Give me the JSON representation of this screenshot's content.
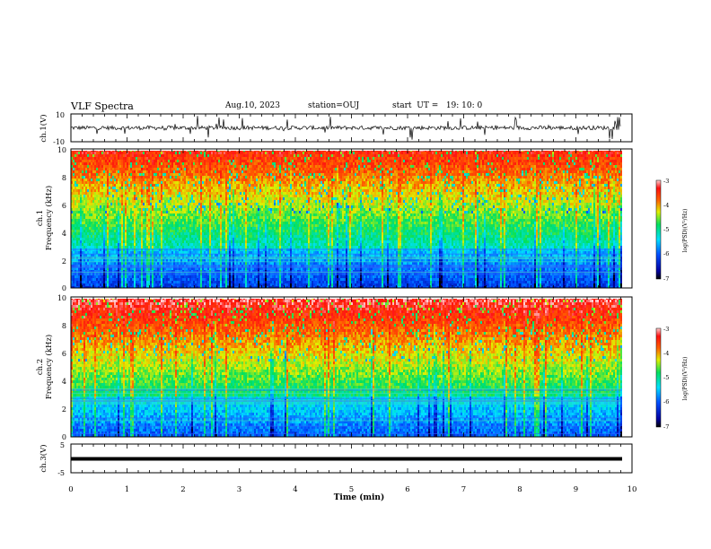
{
  "header": {
    "title": "VLF Spectra",
    "date": "Aug.10, 2023",
    "station": "station=OUJ",
    "start_ut": "start  UT =   19: 10: 0"
  },
  "chart_data": [
    {
      "type": "line",
      "panel": "ch1-waveform",
      "ylabel": "ch.1(V)",
      "ylim": [
        -10,
        10
      ],
      "yticks": [
        "10",
        "-10"
      ],
      "xlim": [
        0,
        10
      ],
      "series": [
        {
          "values_description_only": false,
          "baseline": 0,
          "amplitude_typical": 2
        }
      ]
    },
    {
      "type": "heatmap",
      "panel": "ch1-spectrogram",
      "ylabel_line1": "ch.1",
      "ylabel_line2": "Frequency  (kHz)",
      "ylim": [
        0,
        10
      ],
      "yticks": [
        "0",
        "2",
        "4",
        "6",
        "8",
        "10"
      ],
      "xlim": [
        0,
        9.8
      ],
      "colorbar": {
        "label": "log(PSD)(V²/Hz)",
        "range": [
          -7,
          -3
        ],
        "ticks": [
          "-3",
          "-4",
          "-5",
          "-6",
          "-7"
        ]
      }
    },
    {
      "type": "heatmap",
      "panel": "ch2-spectrogram",
      "ylabel_line1": "ch.2",
      "ylabel_line2": "Frequency  (kHz)",
      "ylim": [
        0,
        10
      ],
      "yticks": [
        "0",
        "2",
        "4",
        "6",
        "8",
        "10"
      ],
      "xlim": [
        0,
        9.8
      ],
      "colorbar": {
        "label": "log(PSD)(V²/Hz)",
        "range": [
          -7,
          -3
        ],
        "ticks": [
          "-3",
          "-4",
          "-5",
          "-6",
          "-7"
        ]
      }
    },
    {
      "type": "line",
      "panel": "ch3-waveform",
      "ylabel": "ch.3(V)",
      "ylim": [
        -5,
        5
      ],
      "yticks": [
        "5",
        "-5"
      ],
      "series": [
        {
          "constant_value": -1.2
        }
      ]
    }
  ],
  "x_axis": {
    "label": "Time  (min)",
    "ticks": [
      "0",
      "1",
      "2",
      "3",
      "4",
      "5",
      "6",
      "7",
      "8",
      "9",
      "10"
    ],
    "range": [
      0,
      10
    ]
  }
}
